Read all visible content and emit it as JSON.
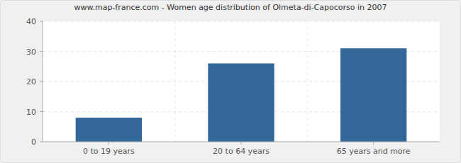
{
  "chart_data": {
    "type": "bar",
    "title": "www.map-france.com - Women age distribution of Olmeta-di-Capocorso in 2007",
    "categories": [
      "0 to 19 years",
      "20 to 64 years",
      "65 years and more"
    ],
    "values": [
      8,
      26,
      31
    ],
    "color": "#336699",
    "ylim": [
      0,
      40
    ],
    "yticks": [
      0,
      10,
      20,
      30,
      40
    ],
    "grid": true
  }
}
